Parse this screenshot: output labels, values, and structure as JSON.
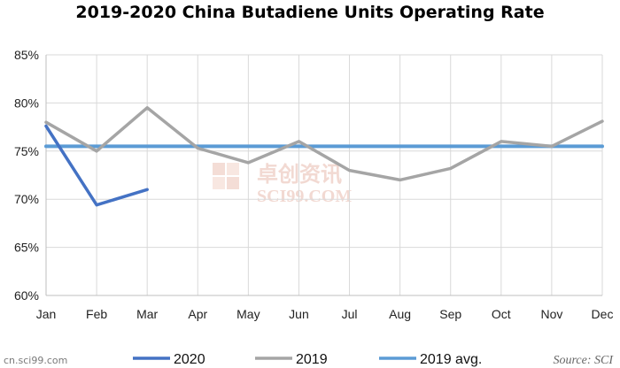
{
  "chart_data": {
    "type": "line",
    "title": "2019-2020 China Butadiene Units Operating Rate",
    "categories": [
      "Jan",
      "Feb",
      "Mar",
      "Apr",
      "May",
      "Jun",
      "Jul",
      "Aug",
      "Sep",
      "Oct",
      "Nov",
      "Dec"
    ],
    "y_ticks": [
      "60%",
      "65%",
      "70%",
      "75%",
      "80%",
      "85%"
    ],
    "ylim": [
      60,
      85
    ],
    "grid": true,
    "legend_position": "bottom",
    "series": [
      {
        "name": "2020",
        "color": "#4472c4",
        "values": [
          77.6,
          69.4,
          71.0,
          null,
          null,
          null,
          null,
          null,
          null,
          null,
          null,
          null
        ]
      },
      {
        "name": "2019",
        "color": "#a5a5a5",
        "values": [
          78.0,
          75.0,
          79.5,
          75.3,
          73.8,
          76.0,
          73.0,
          72.0,
          73.2,
          76.0,
          75.5,
          78.1
        ]
      },
      {
        "name": "2019 avg.",
        "color": "#5b9bd5",
        "values": [
          75.5,
          75.5,
          75.5,
          75.5,
          75.5,
          75.5,
          75.5,
          75.5,
          75.5,
          75.5,
          75.5,
          75.5
        ]
      }
    ],
    "source": "Source: SCI"
  },
  "watermark": {
    "chinese_text": "卓创资讯",
    "english_text": "SCI99.COM",
    "corner_text": "cn.sci99.com"
  }
}
